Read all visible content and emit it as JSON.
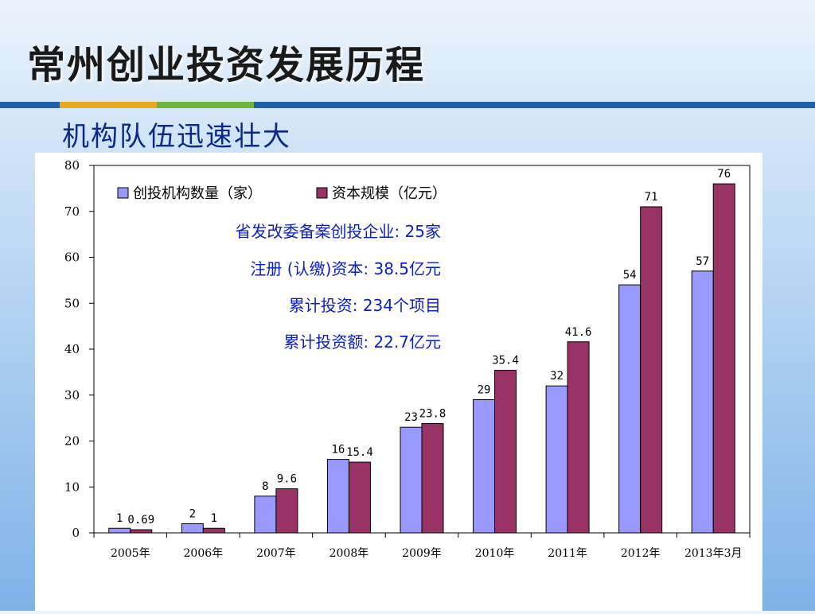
{
  "slide": {
    "title": "常州创业投资发展历程",
    "subtitle": "机构队伍迅速壮大",
    "strip_colors": [
      "#1f5fa8",
      "#e8a820",
      "#6fb43c",
      "#1f5fa8"
    ]
  },
  "annotations": [
    "省发改委备案创投企业: 25家",
    "注册 (认缴)资本: 38.5亿元",
    "累计投资: 234个项目",
    "累计投资额: 22.7亿元"
  ],
  "chart_data": {
    "type": "bar",
    "categories": [
      "2005年",
      "2006年",
      "2007年",
      "2008年",
      "2009年",
      "2010年",
      "2011年",
      "2012年",
      "2013年3月"
    ],
    "series": [
      {
        "name": "创投机构数量（家）",
        "color": "#9999ff",
        "values": [
          1,
          2,
          8,
          16,
          23,
          29,
          32,
          54,
          57
        ],
        "labels": [
          "1",
          "2",
          "8",
          "16",
          "23",
          "29",
          "32",
          "54",
          "57"
        ]
      },
      {
        "name": "资本规模（亿元）",
        "color": "#993366",
        "values": [
          0.69,
          1,
          9.6,
          15.4,
          23.8,
          35.4,
          41.6,
          71,
          76
        ],
        "labels": [
          "0.69",
          "1",
          "9.6",
          "15.4",
          "23.8",
          "35.4",
          "41.6",
          "71",
          "76"
        ]
      }
    ],
    "ylim": [
      0,
      80
    ],
    "yticks": [
      0,
      10,
      20,
      30,
      40,
      50,
      60,
      70,
      80
    ],
    "legend_position": "top-left",
    "grid": false
  }
}
